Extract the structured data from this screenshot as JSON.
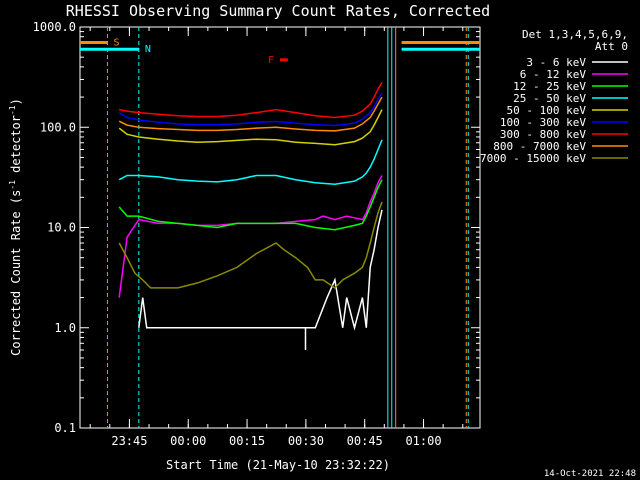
{
  "chart_data": {
    "type": "line",
    "title": "RHESSI Observing Summary Count Rates, Corrected",
    "xlabel": "Start Time (21-May-10 23:32:22)",
    "ylabel_main": "Corrected Count Rate (s",
    "ylabel_exp1": "-1",
    "ylabel_mid": " detector",
    "ylabel_exp2": "-1",
    "ylabel_end": ")",
    "yscale": "log",
    "ylim": [
      0.1,
      1000
    ],
    "xlim_minutes": [
      0,
      102
    ],
    "x_ticks": [
      {
        "label": "23:45",
        "minute": 12.6
      },
      {
        "label": "00:00",
        "minute": 27.6
      },
      {
        "label": "00:15",
        "minute": 42.6
      },
      {
        "label": "00:30",
        "minute": 57.6
      },
      {
        "label": "00:45",
        "minute": 72.6
      },
      {
        "label": "01:00",
        "minute": 87.6
      }
    ],
    "y_ticks": [
      {
        "label": "1000.0",
        "value": 1000
      },
      {
        "label": "100.0",
        "value": 100
      },
      {
        "label": "10.0",
        "value": 10
      },
      {
        "label": "1.0",
        "value": 1
      },
      {
        "label": "0.1",
        "value": 0.1
      }
    ],
    "legend_title": [
      "Det 1,3,4,5,6,9,",
      "Att 0"
    ],
    "series": [
      {
        "name": "3 - 6 keV",
        "color": "#ffffff",
        "x": [
          15,
          16,
          17,
          18,
          20,
          25,
          30,
          40,
          45,
          48,
          50,
          52,
          55,
          58,
          60,
          63,
          65,
          67,
          68,
          70,
          72,
          73,
          74,
          75,
          76,
          77
        ],
        "y": [
          1.0,
          2.0,
          1.0,
          1.0,
          1.0,
          1.0,
          1.0,
          1.0,
          1.0,
          1.0,
          1.0,
          1.0,
          1.0,
          1.0,
          1.0,
          2.0,
          3.0,
          1.0,
          2.0,
          1.0,
          2.0,
          1.0,
          4.0,
          6.0,
          10.0,
          15.0
        ]
      },
      {
        "name": "6 - 12 keV",
        "color": "#ff00ff",
        "x": [
          10,
          12,
          15,
          20,
          25,
          30,
          35,
          40,
          45,
          50,
          55,
          60,
          62,
          65,
          68,
          70,
          72,
          73,
          74,
          75,
          76,
          77
        ],
        "y": [
          2.0,
          8.0,
          12.0,
          11.0,
          11.0,
          10.5,
          10.5,
          11.0,
          11.0,
          11.0,
          11.5,
          12.0,
          13.0,
          12.0,
          13.0,
          12.5,
          12.0,
          14.0,
          18.0,
          22.0,
          28.0,
          33.0
        ]
      },
      {
        "name": "12 - 25 keV",
        "color": "#00ff00",
        "x": [
          10,
          12,
          15,
          20,
          25,
          30,
          35,
          40,
          45,
          50,
          55,
          60,
          65,
          70,
          72,
          73,
          74,
          75,
          76,
          77
        ],
        "y": [
          16.0,
          13.0,
          13.0,
          11.5,
          11.0,
          10.5,
          10.0,
          11.0,
          11.0,
          11.0,
          11.0,
          10.0,
          9.5,
          10.5,
          11.0,
          13.0,
          16.0,
          20.0,
          25.0,
          30.0
        ]
      },
      {
        "name": "25 - 50 keV",
        "color": "#00ffff",
        "x": [
          10,
          12,
          15,
          20,
          25,
          30,
          35,
          40,
          45,
          50,
          55,
          60,
          65,
          70,
          72,
          73,
          74,
          75,
          76,
          77
        ],
        "y": [
          30.0,
          33.0,
          33.0,
          32.0,
          30.0,
          29.0,
          28.5,
          30.0,
          33.0,
          33.0,
          30.0,
          28.0,
          27.0,
          29.0,
          32.0,
          35.0,
          40.0,
          48.0,
          60.0,
          75.0
        ]
      },
      {
        "name": "50 - 100 keV",
        "color": "#d2d200",
        "x": [
          10,
          12,
          15,
          20,
          25,
          30,
          35,
          40,
          45,
          50,
          55,
          60,
          65,
          70,
          72,
          74,
          75,
          76,
          77
        ],
        "y": [
          98.0,
          85.0,
          80.0,
          76.0,
          73.0,
          71.0,
          72.0,
          74.0,
          76.0,
          75.0,
          71.0,
          69.0,
          67.0,
          72.0,
          78.0,
          90.0,
          105.0,
          125.0,
          150.0
        ]
      },
      {
        "name": "100 - 300 keV",
        "color": "#0000ff",
        "x": [
          10,
          12,
          15,
          20,
          25,
          30,
          35,
          40,
          45,
          50,
          55,
          60,
          65,
          70,
          72,
          74,
          75,
          76,
          77
        ],
        "y": [
          140.0,
          125.0,
          118.0,
          112.0,
          108.0,
          106.0,
          106.0,
          108.0,
          112.0,
          114.0,
          110.0,
          106.0,
          104.0,
          110.0,
          120.0,
          140.0,
          160.0,
          190.0,
          220.0
        ]
      },
      {
        "name": "300 - 800 keV",
        "color": "#ff0000",
        "x": [
          10,
          12,
          15,
          20,
          25,
          30,
          35,
          40,
          45,
          50,
          55,
          60,
          65,
          70,
          72,
          74,
          75,
          76,
          77
        ],
        "y": [
          150.0,
          145.0,
          140.0,
          135.0,
          130.0,
          128.0,
          128.0,
          132.0,
          140.0,
          150.0,
          140.0,
          130.0,
          125.0,
          132.0,
          145.0,
          170.0,
          200.0,
          240.0,
          280.0
        ]
      },
      {
        "name": "800 - 7000 keV",
        "color": "#ff8c00",
        "x": [
          10,
          12,
          15,
          20,
          25,
          30,
          35,
          40,
          45,
          50,
          55,
          60,
          65,
          70,
          72,
          74,
          75,
          76,
          77
        ],
        "y": [
          115.0,
          105.0,
          100.0,
          97.0,
          95.0,
          93.0,
          93.0,
          95.0,
          98.0,
          100.0,
          96.0,
          93.0,
          92.0,
          98.0,
          108.0,
          125.0,
          145.0,
          170.0,
          200.0
        ]
      },
      {
        "name": "7000 - 15000 keV",
        "color": "#8b8b00",
        "x": [
          10,
          12,
          14,
          16,
          18,
          20,
          25,
          30,
          35,
          40,
          45,
          50,
          52,
          55,
          58,
          60,
          62,
          65,
          67,
          70,
          72,
          73,
          74,
          75,
          76,
          77
        ],
        "y": [
          7.0,
          5.0,
          3.5,
          3.0,
          2.5,
          2.5,
          2.5,
          2.8,
          3.3,
          4.0,
          5.5,
          7.0,
          6.0,
          5.0,
          4.0,
          3.0,
          3.0,
          2.5,
          3.0,
          3.5,
          4.0,
          5.0,
          7.0,
          10.0,
          14.0,
          18.0
        ]
      }
    ],
    "series_segments": [
      {
        "name": "3 - 6 keV",
        "x": [
          57.5,
          57.5
        ],
        "y": [
          1.0,
          0.6
        ]
      }
    ],
    "orbit_bars": [
      {
        "label": "S",
        "color": "#ff8c00",
        "segments": [
          [
            0,
            7
          ],
          [
            82,
            102
          ]
        ],
        "y_level": 700
      },
      {
        "label": "N",
        "color": "#00ffff",
        "segments": [
          [
            0,
            15
          ],
          [
            82,
            102
          ]
        ],
        "y_level": 600
      },
      {
        "label": "F",
        "color": "#ff0000",
        "segments": [
          [
            51,
            53
          ]
        ],
        "y_level": 470
      }
    ],
    "vertical_markers": [
      {
        "minute": 7.0,
        "color": "#ff8c00",
        "style": "dashed"
      },
      {
        "minute": 15.0,
        "color": "#00ffff",
        "style": "dashed"
      },
      {
        "minute": 78.5,
        "color": "#00ffff",
        "style": "solid"
      },
      {
        "minute": 79.5,
        "color": "#00ffff",
        "style": "solid"
      },
      {
        "minute": 80.5,
        "color": "#ff8c00",
        "style": "solid"
      },
      {
        "minute": 98.5,
        "color": "#ff8c00",
        "style": "dashed"
      },
      {
        "minute": 99.0,
        "color": "#00ffff",
        "style": "dashed"
      }
    ]
  },
  "footer": {
    "date": "14-Oct-2021 22:48"
  }
}
